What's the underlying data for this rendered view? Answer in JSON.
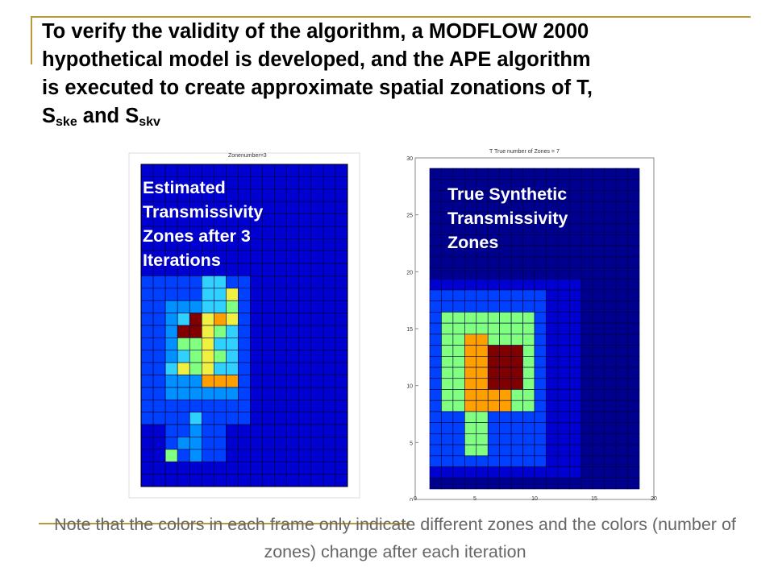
{
  "slide": {
    "title_lines": [
      "To verify the validity of the algorithm, a MODFLOW 2000",
      "hypothetical model is developed, and the APE algorithm",
      "is executed to create approximate spatial zonations of T,"
    ],
    "title_last_line": {
      "s1": "S",
      "sub1": "ske",
      "and": " and ",
      "s2": "S",
      "sub2": "skv"
    },
    "note": "Note that the colors in each frame only indicate different zones and the colors (number of zones) change after each iteration"
  },
  "left_panel": {
    "overlay_lines": [
      "Estimated",
      "Transmissivity",
      "Zones after 3",
      "Iterations"
    ],
    "small_title": "Zonenumber=3",
    "grid": {
      "cols": 17,
      "rows": 26
    }
  },
  "right_panel": {
    "overlay_lines": [
      "True Synthetic",
      "Transmissivity",
      "Zones"
    ],
    "small_title": "T True number of Zones = 7",
    "y_ticks": [
      "30",
      "25",
      "20",
      "15",
      "10",
      "5",
      "0"
    ],
    "x_ticks": [
      "0",
      "5",
      "10",
      "15",
      "20"
    ],
    "grid": {
      "cols": 18,
      "rows": 29
    }
  },
  "colors": {
    "dark_blue": "#00008f",
    "blue": "#0000d0",
    "mid_blue": "#0040ff",
    "light_blue": "#0090ff",
    "cyan": "#30d0ff",
    "light_green": "#80ff80",
    "yellow": "#f0f040",
    "orange": "#ffa000",
    "dark_red": "#800000",
    "accent": "#b89a3c"
  }
}
